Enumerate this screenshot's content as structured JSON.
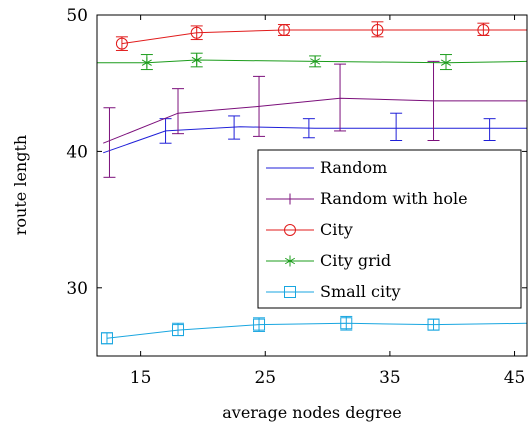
{
  "chart_data": {
    "type": "line",
    "title": "",
    "xlabel": "average nodes degree",
    "ylabel": "route length",
    "xlim": [
      11.5,
      46
    ],
    "ylim": [
      25,
      50
    ],
    "x_ticks": [
      15,
      25,
      35,
      45
    ],
    "x_tick_labels": [
      "15",
      "25",
      "35",
      "45"
    ],
    "y_ticks": [
      30,
      40,
      50
    ],
    "y_tick_labels": [
      "30",
      "40",
      "50"
    ],
    "grid": false,
    "legend_position": "center-right",
    "series": [
      {
        "name": "Random",
        "color": "#1f1fd8",
        "marker": "none",
        "points": [
          [
            12,
            39.9
          ],
          [
            17,
            41.5
          ],
          [
            23,
            41.8
          ],
          [
            29,
            41.7
          ],
          [
            35,
            41.7
          ],
          [
            41,
            41.7
          ],
          [
            46,
            41.7
          ]
        ],
        "error_bars": [
          {
            "x": 17,
            "y": 41.5,
            "low": 40.6,
            "high": 42.4
          },
          {
            "x": 22.5,
            "y": 41.8,
            "low": 40.9,
            "high": 42.6
          },
          {
            "x": 28.5,
            "y": 41.7,
            "low": 41.0,
            "high": 42.4
          },
          {
            "x": 35.5,
            "y": 41.7,
            "low": 40.8,
            "high": 42.8
          },
          {
            "x": 43,
            "y": 41.7,
            "low": 40.8,
            "high": 42.4
          }
        ]
      },
      {
        "name": "Random with hole",
        "color": "#7b0f7b",
        "marker": "vertical-bar",
        "points": [
          [
            12,
            40.6
          ],
          [
            18,
            42.8
          ],
          [
            24.5,
            43.3
          ],
          [
            31,
            43.9
          ],
          [
            38.5,
            43.7
          ],
          [
            46,
            43.7
          ]
        ],
        "error_bars": [
          {
            "x": 12.5,
            "y": 40.6,
            "low": 38.1,
            "high": 43.2
          },
          {
            "x": 18,
            "y": 42.8,
            "low": 41.3,
            "high": 44.6
          },
          {
            "x": 24.5,
            "y": 43.3,
            "low": 41.1,
            "high": 45.5
          },
          {
            "x": 31,
            "y": 43.9,
            "low": 41.5,
            "high": 46.4
          },
          {
            "x": 38.5,
            "y": 43.7,
            "low": 40.8,
            "high": 46.6
          }
        ]
      },
      {
        "name": "City",
        "color": "#e11b1b",
        "marker": "circle",
        "points": [
          [
            13.5,
            47.9
          ],
          [
            19.5,
            48.7
          ],
          [
            26.5,
            48.9
          ],
          [
            34,
            48.9
          ],
          [
            42.5,
            48.9
          ],
          [
            46,
            48.9
          ]
        ],
        "error_bars": [
          {
            "x": 13.5,
            "y": 47.9,
            "low": 47.4,
            "high": 48.4
          },
          {
            "x": 19.5,
            "y": 48.7,
            "low": 48.2,
            "high": 49.2
          },
          {
            "x": 26.5,
            "y": 48.9,
            "low": 48.5,
            "high": 49.3
          },
          {
            "x": 34,
            "y": 48.9,
            "low": 48.4,
            "high": 49.5
          },
          {
            "x": 42.5,
            "y": 48.9,
            "low": 48.5,
            "high": 49.4
          }
        ]
      },
      {
        "name": "City grid",
        "color": "#1c9c1c",
        "marker": "asterisk",
        "points": [
          [
            11.5,
            46.5
          ],
          [
            15.5,
            46.5
          ],
          [
            19.5,
            46.7
          ],
          [
            29,
            46.6
          ],
          [
            39.5,
            46.5
          ],
          [
            46,
            46.6
          ]
        ],
        "error_bars": [
          {
            "x": 15.5,
            "y": 46.5,
            "low": 46.0,
            "high": 47.1
          },
          {
            "x": 19.5,
            "y": 46.7,
            "low": 46.2,
            "high": 47.2
          },
          {
            "x": 29,
            "y": 46.6,
            "low": 46.2,
            "high": 47.0
          },
          {
            "x": 39.5,
            "y": 46.5,
            "low": 46.0,
            "high": 47.1
          }
        ]
      },
      {
        "name": "Small city",
        "color": "#19a6e0",
        "marker": "square",
        "points": [
          [
            12.3,
            26.3
          ],
          [
            18,
            26.9
          ],
          [
            24.5,
            27.3
          ],
          [
            31.5,
            27.4
          ],
          [
            38.5,
            27.3
          ],
          [
            46,
            27.4
          ]
        ],
        "error_bars": [
          {
            "x": 12.3,
            "y": 26.3,
            "low": 25.9,
            "high": 26.7
          },
          {
            "x": 18,
            "y": 26.9,
            "low": 26.5,
            "high": 27.4
          },
          {
            "x": 24.5,
            "y": 27.3,
            "low": 26.8,
            "high": 27.8
          },
          {
            "x": 31.5,
            "y": 27.4,
            "low": 26.9,
            "high": 27.9
          },
          {
            "x": 38.5,
            "y": 27.3,
            "low": 26.9,
            "high": 27.7
          }
        ]
      }
    ]
  }
}
